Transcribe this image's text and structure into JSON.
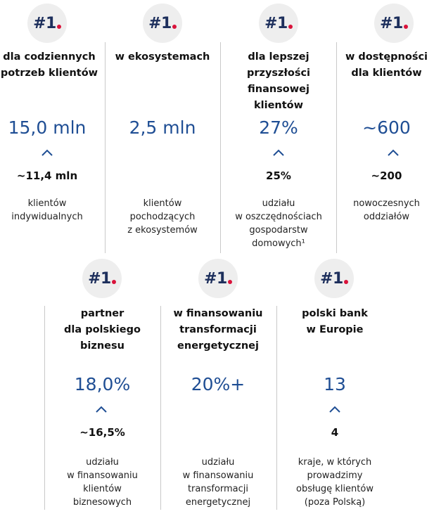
{
  "colors": {
    "accent_blue": "#1f4e94",
    "badge_text": "#1d2f5c",
    "badge_dot": "#d9123a",
    "badge_bg": "#eeeeee",
    "divider": "#c9c9c9"
  },
  "badge_text": "#1",
  "top_row": [
    {
      "title": [
        "dla codziennych",
        "potrzeb klientów"
      ],
      "value": "15,0 mln",
      "compare_value": "~11,4 mln",
      "description": [
        "klientów",
        "indywidualnych"
      ]
    },
    {
      "title": [
        "w ekosystemach"
      ],
      "value": "2,5 mln",
      "compare_value": "",
      "description": [
        "klientów",
        "pochodzących",
        "z ekosystemów"
      ]
    },
    {
      "title": [
        "dla lepszej",
        "przyszłości",
        "finansowej",
        "klientów"
      ],
      "value": "27%",
      "compare_value": "25%",
      "description": [
        "udziału",
        "w oszczędnościach",
        "gospodarstw",
        "domowych¹"
      ]
    },
    {
      "title": [
        "w dostępności",
        "dla klientów"
      ],
      "value": "~600",
      "compare_value": "~200",
      "description": [
        "nowoczesnych",
        "oddziałów"
      ]
    }
  ],
  "bottom_row": [
    {
      "title": [
        "partner",
        "dla polskiego",
        "biznesu"
      ],
      "value": "18,0%",
      "compare_value": "~16,5%",
      "description": [
        "udziału",
        "w finansowaniu",
        "klientów",
        "biznesowych"
      ]
    },
    {
      "title": [
        "w finansowaniu",
        "transformacji",
        "energetycznej"
      ],
      "value": "20%+",
      "compare_value": "",
      "description": [
        "udziału",
        "w finansowaniu",
        "transformacji",
        "energetycznej"
      ]
    },
    {
      "title": [
        "polski bank",
        "w Europie"
      ],
      "value": "13",
      "compare_value": "4",
      "description": [
        "kraje, w których",
        "prowadzimy",
        "obsługę klientów",
        "(poza Polską)"
      ]
    }
  ]
}
